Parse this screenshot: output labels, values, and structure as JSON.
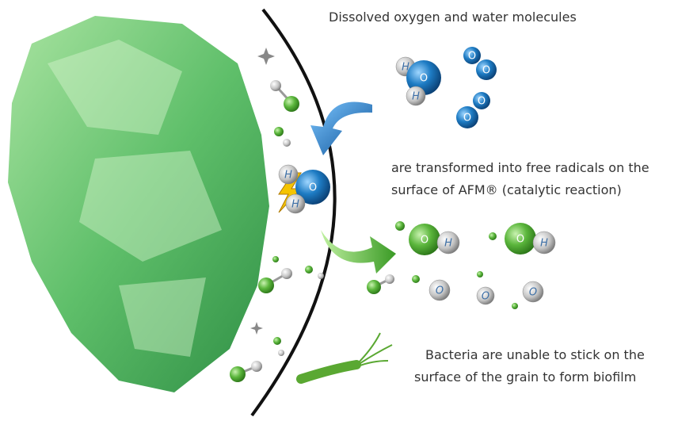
{
  "captions": {
    "molecules": "Dissolved oxygen and water molecules",
    "reaction": [
      "are transformed into free radicals on the",
      "surface of AFM® (catalytic reaction)"
    ],
    "bacteria": [
      "Bacteria are unable to stick on the",
      "surface of the grain to form biofilm"
    ]
  },
  "atom_labels": [
    "H",
    "O",
    "H",
    "O",
    "O",
    "O",
    "O",
    "H",
    "O",
    "H",
    "O",
    "H",
    "O",
    "H",
    "O",
    "O",
    "O"
  ]
}
